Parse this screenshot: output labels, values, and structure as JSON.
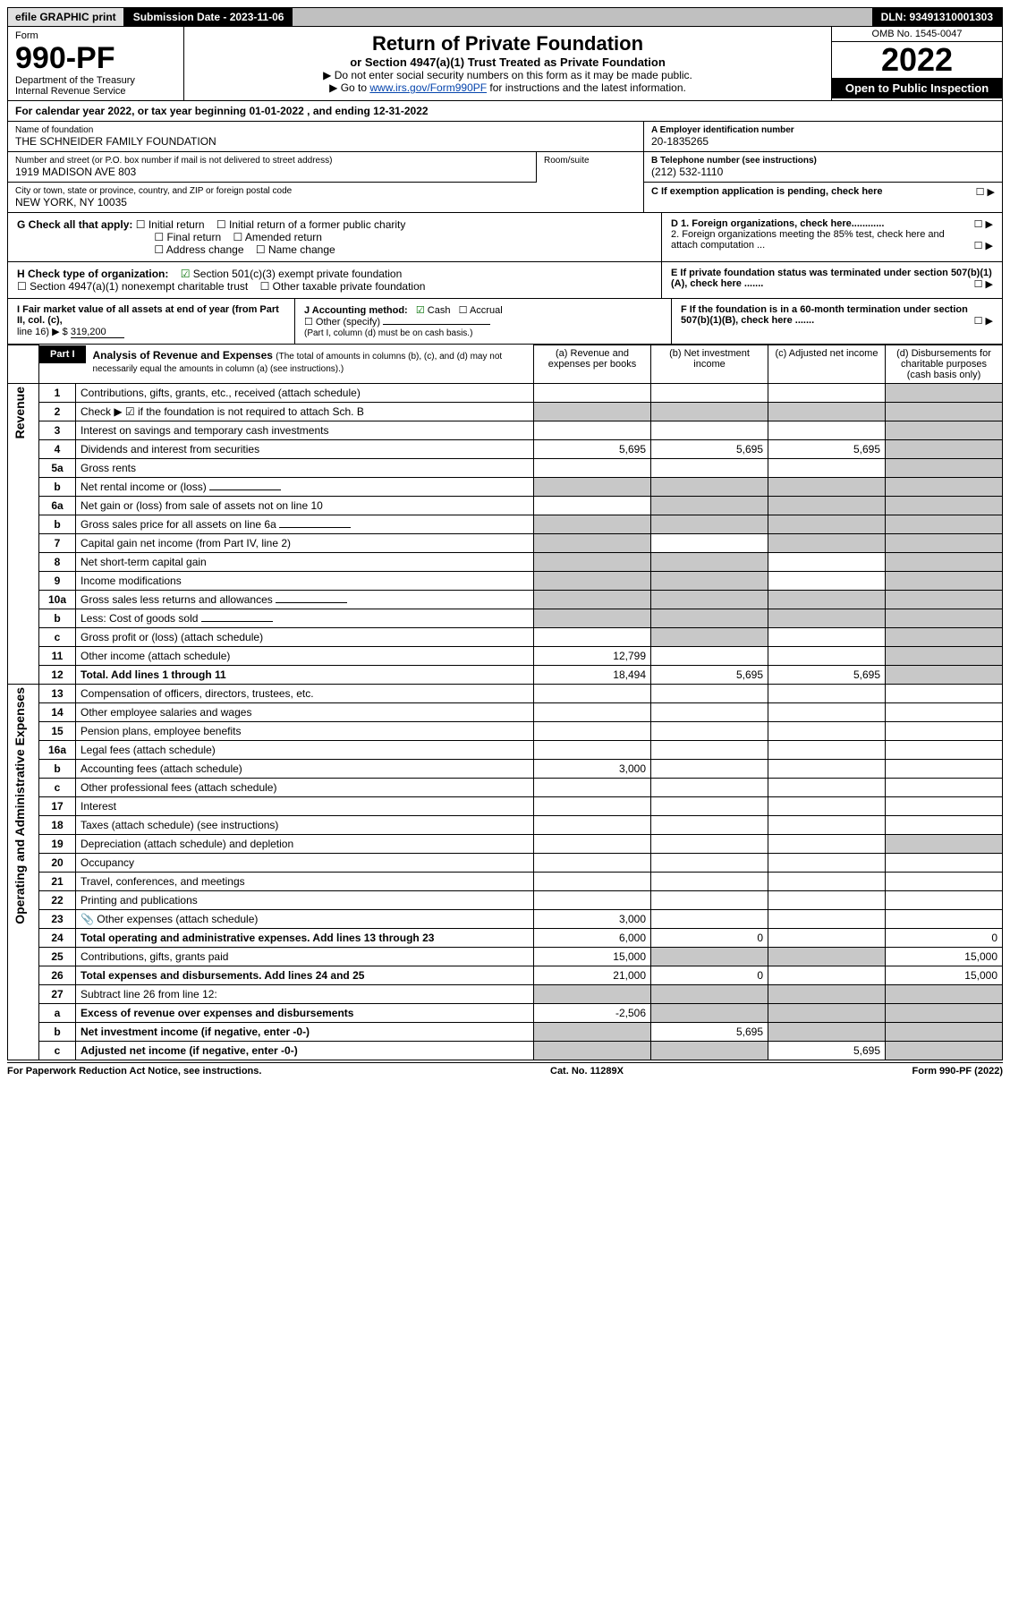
{
  "top": {
    "efile": "efile GRAPHIC print",
    "submission": "Submission Date - 2023-11-06",
    "dln": "DLN: 93491310001303"
  },
  "header": {
    "form_word": "Form",
    "form_no": "990-PF",
    "dept": "Department of the Treasury",
    "irs": "Internal Revenue Service",
    "title": "Return of Private Foundation",
    "subtitle": "or Section 4947(a)(1) Trust Treated as Private Foundation",
    "note1": "▶ Do not enter social security numbers on this form as it may be made public.",
    "note2_prefix": "▶ Go to ",
    "note2_link": "www.irs.gov/Form990PF",
    "note2_suffix": " for instructions and the latest information.",
    "omb": "OMB No. 1545-0047",
    "year": "2022",
    "open": "Open to Public Inspection"
  },
  "calyear": "For calendar year 2022, or tax year beginning 01-01-2022                         , and ending 12-31-2022",
  "id": {
    "name_lbl": "Name of foundation",
    "name_val": "THE SCHNEIDER FAMILY FOUNDATION",
    "addr_lbl": "Number and street (or P.O. box number if mail is not delivered to street address)",
    "addr_val": "1919 MADISON AVE 803",
    "room_lbl": "Room/suite",
    "city_lbl": "City or town, state or province, country, and ZIP or foreign postal code",
    "city_val": "NEW YORK, NY  10035",
    "a_lbl": "A Employer identification number",
    "a_val": "20-1835265",
    "b_lbl": "B Telephone number (see instructions)",
    "b_val": "(212) 532-1110",
    "c_lbl": "C If exemption application is pending, check here"
  },
  "g": {
    "lead": "G Check all that apply:",
    "opts": [
      "Initial return",
      "Final return",
      "Address change",
      "Initial return of a former public charity",
      "Amended return",
      "Name change"
    ]
  },
  "h": {
    "lead": "H Check type of organization:",
    "opt1": "Section 501(c)(3) exempt private foundation",
    "opt2": "Section 4947(a)(1) nonexempt charitable trust",
    "opt3": "Other taxable private foundation"
  },
  "d": {
    "d1": "D 1. Foreign organizations, check here............",
    "d2": "2. Foreign organizations meeting the 85% test, check here and attach computation ..."
  },
  "e": "E  If private foundation status was terminated under section 507(b)(1)(A), check here .......",
  "i": {
    "lead": "I Fair market value of all assets at end of year (from Part II, col. (c),",
    "line": "line 16) ▶ $",
    "val": "319,200"
  },
  "j": {
    "lead": "J Accounting method:",
    "cash": "Cash",
    "accrual": "Accrual",
    "other": "Other (specify)",
    "note": "(Part I, column (d) must be on cash basis.)"
  },
  "f": "F  If the foundation is in a 60-month termination under section 507(b)(1)(B), check here .......",
  "part1": {
    "tag": "Part I",
    "title": "Analysis of Revenue and Expenses",
    "note": "(The total of amounts in columns (b), (c), and (d) may not necessarily equal the amounts in column (a) (see instructions).)",
    "cols": {
      "a": "(a) Revenue and expenses per books",
      "b": "(b) Net investment income",
      "c": "(c) Adjusted net income",
      "d": "(d) Disbursements for charitable purposes (cash basis only)"
    }
  },
  "sections": {
    "rev": "Revenue",
    "exp": "Operating and Administrative Expenses"
  },
  "rows": [
    {
      "n": "1",
      "desc": "Contributions, gifts, grants, etc., received (attach schedule)",
      "a": "",
      "b": "",
      "c": "",
      "d": "",
      "d_shade": true
    },
    {
      "n": "2",
      "desc": "Check ▶ ☑ if the foundation is not required to attach Sch. B",
      "a": "",
      "b": "",
      "c": "",
      "d": "",
      "b_shade": true,
      "c_shade": true,
      "d_shade": true,
      "a_shade": true
    },
    {
      "n": "3",
      "desc": "Interest on savings and temporary cash investments",
      "a": "",
      "b": "",
      "c": "",
      "d": "",
      "d_shade": true
    },
    {
      "n": "4",
      "desc": "Dividends and interest from securities",
      "a": "5,695",
      "b": "5,695",
      "c": "5,695",
      "d": "",
      "d_shade": true
    },
    {
      "n": "5a",
      "desc": "Gross rents",
      "a": "",
      "b": "",
      "c": "",
      "d": "",
      "d_shade": true
    },
    {
      "n": "b",
      "desc": "Net rental income or (loss)",
      "a": "",
      "b": "",
      "c": "",
      "d": "",
      "inline_box": true,
      "b_shade": true,
      "c_shade": true,
      "d_shade": true,
      "a_shade": true
    },
    {
      "n": "6a",
      "desc": "Net gain or (loss) from sale of assets not on line 10",
      "a": "",
      "b": "",
      "c": "",
      "d": "",
      "b_shade": true,
      "c_shade": true,
      "d_shade": true
    },
    {
      "n": "b",
      "desc": "Gross sales price for all assets on line 6a",
      "a": "",
      "b": "",
      "c": "",
      "d": "",
      "inline_box": true,
      "a_shade": true,
      "b_shade": true,
      "c_shade": true,
      "d_shade": true
    },
    {
      "n": "7",
      "desc": "Capital gain net income (from Part IV, line 2)",
      "a": "",
      "b": "",
      "c": "",
      "d": "",
      "a_shade": true,
      "c_shade": true,
      "d_shade": true
    },
    {
      "n": "8",
      "desc": "Net short-term capital gain",
      "a": "",
      "b": "",
      "c": "",
      "d": "",
      "a_shade": true,
      "b_shade": true,
      "d_shade": true
    },
    {
      "n": "9",
      "desc": "Income modifications",
      "a": "",
      "b": "",
      "c": "",
      "d": "",
      "a_shade": true,
      "b_shade": true,
      "d_shade": true
    },
    {
      "n": "10a",
      "desc": "Gross sales less returns and allowances",
      "a": "",
      "b": "",
      "c": "",
      "d": "",
      "inline_box": true,
      "a_shade": true,
      "b_shade": true,
      "c_shade": true,
      "d_shade": true
    },
    {
      "n": "b",
      "desc": "Less: Cost of goods sold",
      "a": "",
      "b": "",
      "c": "",
      "d": "",
      "inline_box": true,
      "a_shade": true,
      "b_shade": true,
      "c_shade": true,
      "d_shade": true
    },
    {
      "n": "c",
      "desc": "Gross profit or (loss) (attach schedule)",
      "a": "",
      "b": "",
      "c": "",
      "d": "",
      "b_shade": true,
      "d_shade": true
    },
    {
      "n": "11",
      "desc": "Other income (attach schedule)",
      "a": "12,799",
      "b": "",
      "c": "",
      "d": "",
      "d_shade": true
    },
    {
      "n": "12",
      "desc": "Total. Add lines 1 through 11",
      "bold": true,
      "a": "18,494",
      "b": "5,695",
      "c": "5,695",
      "d": "",
      "d_shade": true
    },
    {
      "n": "13",
      "desc": "Compensation of officers, directors, trustees, etc.",
      "a": "",
      "b": "",
      "c": "",
      "d": ""
    },
    {
      "n": "14",
      "desc": "Other employee salaries and wages",
      "a": "",
      "b": "",
      "c": "",
      "d": ""
    },
    {
      "n": "15",
      "desc": "Pension plans, employee benefits",
      "a": "",
      "b": "",
      "c": "",
      "d": ""
    },
    {
      "n": "16a",
      "desc": "Legal fees (attach schedule)",
      "a": "",
      "b": "",
      "c": "",
      "d": ""
    },
    {
      "n": "b",
      "desc": "Accounting fees (attach schedule)",
      "a": "3,000",
      "b": "",
      "c": "",
      "d": ""
    },
    {
      "n": "c",
      "desc": "Other professional fees (attach schedule)",
      "a": "",
      "b": "",
      "c": "",
      "d": ""
    },
    {
      "n": "17",
      "desc": "Interest",
      "a": "",
      "b": "",
      "c": "",
      "d": ""
    },
    {
      "n": "18",
      "desc": "Taxes (attach schedule) (see instructions)",
      "a": "",
      "b": "",
      "c": "",
      "d": ""
    },
    {
      "n": "19",
      "desc": "Depreciation (attach schedule) and depletion",
      "a": "",
      "b": "",
      "c": "",
      "d": "",
      "d_shade": true
    },
    {
      "n": "20",
      "desc": "Occupancy",
      "a": "",
      "b": "",
      "c": "",
      "d": ""
    },
    {
      "n": "21",
      "desc": "Travel, conferences, and meetings",
      "a": "",
      "b": "",
      "c": "",
      "d": ""
    },
    {
      "n": "22",
      "desc": "Printing and publications",
      "a": "",
      "b": "",
      "c": "",
      "d": ""
    },
    {
      "n": "23",
      "desc": "Other expenses (attach schedule)",
      "a": "3,000",
      "b": "",
      "c": "",
      "d": "",
      "attach": true
    },
    {
      "n": "24",
      "desc": "Total operating and administrative expenses. Add lines 13 through 23",
      "bold": true,
      "a": "6,000",
      "b": "0",
      "c": "",
      "d": "0"
    },
    {
      "n": "25",
      "desc": "Contributions, gifts, grants paid",
      "a": "15,000",
      "b": "",
      "c": "",
      "d": "15,000",
      "b_shade": true,
      "c_shade": true
    },
    {
      "n": "26",
      "desc": "Total expenses and disbursements. Add lines 24 and 25",
      "bold": true,
      "a": "21,000",
      "b": "0",
      "c": "",
      "d": "15,000"
    },
    {
      "n": "27",
      "desc": "Subtract line 26 from line 12:",
      "a": "",
      "b": "",
      "c": "",
      "d": "",
      "a_shade": true,
      "b_shade": true,
      "c_shade": true,
      "d_shade": true
    },
    {
      "n": "a",
      "desc": "Excess of revenue over expenses and disbursements",
      "bold": true,
      "a": "-2,506",
      "b": "",
      "c": "",
      "d": "",
      "b_shade": true,
      "c_shade": true,
      "d_shade": true
    },
    {
      "n": "b",
      "desc": "Net investment income (if negative, enter -0-)",
      "bold": true,
      "a": "",
      "b": "5,695",
      "c": "",
      "d": "",
      "a_shade": true,
      "c_shade": true,
      "d_shade": true
    },
    {
      "n": "c",
      "desc": "Adjusted net income (if negative, enter -0-)",
      "bold": true,
      "a": "",
      "b": "",
      "c": "5,695",
      "d": "",
      "a_shade": true,
      "b_shade": true,
      "d_shade": true
    }
  ],
  "footer": {
    "left": "For Paperwork Reduction Act Notice, see instructions.",
    "mid": "Cat. No. 11289X",
    "right": "Form 990-PF (2022)"
  }
}
